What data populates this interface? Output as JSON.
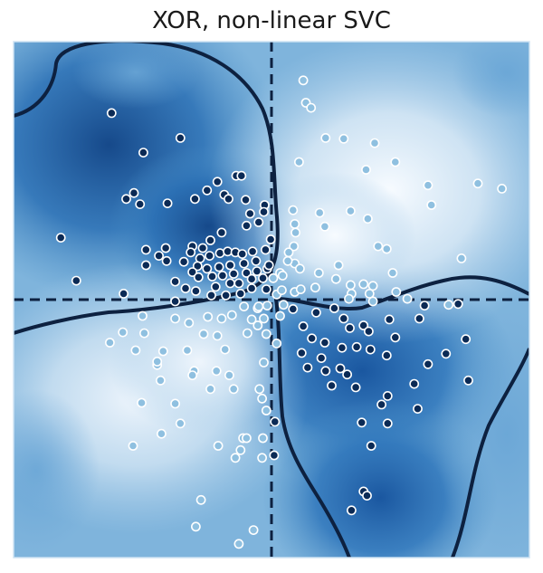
{
  "chart_data": {
    "type": "scatter",
    "title": "XOR, non-linear SVC",
    "xlabel": "",
    "ylabel": "",
    "xlim": [
      -3,
      3
    ],
    "ylim": [
      -3,
      3
    ],
    "grid": false,
    "ticks": false,
    "colormap": "Blues (decision function heatmap)",
    "decision_boundary": "solid dark navy contour",
    "axis_lines": {
      "x": 0,
      "y": 0,
      "style": "dashed"
    },
    "colors": {
      "point_class_positive": "#0b2a55",
      "point_class_negative": "#8fc0e0",
      "point_edge": "#ffffff",
      "boundary": "#0d2140",
      "axis_dash": "#0d2140",
      "dark_region": "#1f62a8",
      "light_region": "#e7f1fa"
    },
    "series": [
      {
        "points": [
          [
            -1.86,
            2.17
          ],
          [
            -1.49,
            1.71
          ],
          [
            -1.06,
            1.88
          ],
          [
            -1.6,
            1.24
          ],
          [
            -1.69,
            1.17
          ],
          [
            -1.53,
            1.11
          ],
          [
            -1.21,
            1.12
          ],
          [
            -0.89,
            1.17
          ],
          [
            -0.75,
            1.27
          ],
          [
            -0.63,
            1.37
          ],
          [
            -0.41,
            1.44
          ],
          [
            -0.35,
            1.44
          ],
          [
            -0.55,
            1.22
          ],
          [
            -0.5,
            1.17
          ],
          [
            -0.3,
            1.16
          ],
          [
            -0.25,
            1.0
          ],
          [
            -0.08,
            1.1
          ],
          [
            -0.09,
            1.02
          ],
          [
            -0.15,
            0.9
          ],
          [
            -0.29,
            0.86
          ],
          [
            -0.58,
            0.78
          ],
          [
            -0.71,
            0.69
          ],
          [
            -0.8,
            0.6
          ],
          [
            -0.92,
            0.62
          ],
          [
            -1.23,
            0.6
          ],
          [
            -1.46,
            0.58
          ],
          [
            -1.46,
            0.4
          ],
          [
            -1.31,
            0.51
          ],
          [
            -1.22,
            0.45
          ],
          [
            -1.02,
            0.44
          ],
          [
            -0.94,
            0.55
          ],
          [
            -0.83,
            0.48
          ],
          [
            -0.72,
            0.51
          ],
          [
            -0.6,
            0.54
          ],
          [
            -0.51,
            0.56
          ],
          [
            -0.42,
            0.55
          ],
          [
            -0.34,
            0.53
          ],
          [
            -0.22,
            0.56
          ],
          [
            -0.07,
            0.58
          ],
          [
            -0.01,
            0.7
          ],
          [
            -0.18,
            0.45
          ],
          [
            -0.32,
            0.42
          ],
          [
            -0.48,
            0.4
          ],
          [
            -0.61,
            0.38
          ],
          [
            -0.75,
            0.36
          ],
          [
            -0.86,
            0.39
          ],
          [
            -0.92,
            0.32
          ],
          [
            -0.85,
            0.26
          ],
          [
            -0.69,
            0.27
          ],
          [
            -0.57,
            0.28
          ],
          [
            -0.44,
            0.3
          ],
          [
            -0.29,
            0.31
          ],
          [
            -0.17,
            0.33
          ],
          [
            -0.05,
            0.36
          ],
          [
            -0.65,
            0.15
          ],
          [
            -0.48,
            0.19
          ],
          [
            -0.38,
            0.19
          ],
          [
            -0.23,
            0.24
          ],
          [
            -0.1,
            0.25
          ],
          [
            -0.03,
            0.4
          ],
          [
            -0.7,
            0.05
          ],
          [
            -0.53,
            0.05
          ],
          [
            -0.36,
            0.07
          ],
          [
            -0.23,
            0.13
          ],
          [
            -0.88,
            0.1
          ],
          [
            -1.0,
            0.13
          ],
          [
            -1.12,
            0.21
          ],
          [
            -1.12,
            -0.02
          ],
          [
            -1.72,
            0.07
          ],
          [
            -2.27,
            0.22
          ],
          [
            -2.45,
            0.72
          ],
          [
            -0.06,
            0.12
          ],
          [
            0.25,
            -0.11
          ],
          [
            0.37,
            -0.31
          ],
          [
            0.52,
            -0.15
          ],
          [
            0.73,
            -0.1
          ],
          [
            0.84,
            -0.22
          ],
          [
            0.91,
            -0.33
          ],
          [
            1.07,
            -0.3
          ],
          [
            0.99,
            -0.55
          ],
          [
            0.82,
            -0.56
          ],
          [
            0.62,
            -0.5
          ],
          [
            0.47,
            -0.45
          ],
          [
            0.58,
            -0.68
          ],
          [
            0.35,
            -0.62
          ],
          [
            0.42,
            -0.79
          ],
          [
            0.63,
            -0.83
          ],
          [
            0.8,
            -0.8
          ],
          [
            1.13,
            -0.37
          ],
          [
            1.37,
            -0.23
          ],
          [
            1.72,
            -0.22
          ],
          [
            2.17,
            -0.05
          ],
          [
            1.78,
            -0.07
          ],
          [
            1.44,
            -0.44
          ],
          [
            1.34,
            -0.65
          ],
          [
            1.15,
            -0.58
          ],
          [
            0.88,
            -0.87
          ],
          [
            0.7,
            -1.0
          ],
          [
            0.98,
            -1.02
          ],
          [
            1.35,
            -1.12
          ],
          [
            1.66,
            -0.98
          ],
          [
            1.82,
            -0.75
          ],
          [
            2.03,
            -0.63
          ],
          [
            2.26,
            -0.46
          ],
          [
            2.29,
            -0.94
          ],
          [
            1.7,
            -1.27
          ],
          [
            1.35,
            -1.44
          ],
          [
            1.28,
            -1.22
          ],
          [
            1.05,
            -1.43
          ],
          [
            0.04,
            -1.42
          ],
          [
            0.03,
            -1.81
          ],
          [
            1.16,
            -1.7
          ],
          [
            1.07,
            -2.23
          ],
          [
            1.11,
            -2.28
          ],
          [
            0.93,
            -2.45
          ]
        ],
        "class": "positive"
      },
      {
        "points": [
          [
            0.37,
            2.55
          ],
          [
            0.4,
            2.29
          ],
          [
            0.46,
            2.23
          ],
          [
            0.63,
            1.88
          ],
          [
            0.84,
            1.87
          ],
          [
            0.32,
            1.6
          ],
          [
            1.2,
            1.82
          ],
          [
            1.44,
            1.6
          ],
          [
            1.1,
            1.51
          ],
          [
            1.82,
            1.33
          ],
          [
            2.4,
            1.35
          ],
          [
            2.68,
            1.29
          ],
          [
            1.86,
            1.1
          ],
          [
            0.56,
            1.01
          ],
          [
            0.92,
            1.03
          ],
          [
            1.12,
            0.94
          ],
          [
            0.62,
            0.85
          ],
          [
            0.27,
            0.88
          ],
          [
            0.25,
            1.04
          ],
          [
            0.28,
            0.78
          ],
          [
            0.26,
            0.62
          ],
          [
            1.24,
            0.62
          ],
          [
            1.34,
            0.59
          ],
          [
            1.41,
            0.31
          ],
          [
            2.21,
            0.48
          ],
          [
            0.2,
            0.55
          ],
          [
            0.27,
            0.42
          ],
          [
            0.33,
            0.36
          ],
          [
            0.55,
            0.31
          ],
          [
            0.78,
            0.4
          ],
          [
            0.75,
            0.24
          ],
          [
            0.27,
            0.09
          ],
          [
            0.92,
            0.17
          ],
          [
            1.18,
            0.16
          ],
          [
            0.51,
            0.14
          ],
          [
            0.06,
            0.06
          ],
          [
            0.02,
            0.25
          ],
          [
            0.1,
            0.31
          ],
          [
            0.13,
            0.28
          ],
          [
            0.19,
            0.45
          ],
          [
            0.34,
            0.12
          ],
          [
            0.12,
            0.11
          ],
          [
            0.93,
            0.07
          ],
          [
            1.14,
            0.07
          ],
          [
            0.9,
            0.01
          ],
          [
            1.18,
            -0.02
          ],
          [
            1.58,
            0.01
          ],
          [
            1.45,
            0.09
          ],
          [
            1.07,
            0.18
          ],
          [
            2.06,
            -0.06
          ],
          [
            -0.16,
            -0.1
          ],
          [
            -0.32,
            -0.08
          ],
          [
            -0.15,
            -0.08
          ],
          [
            -0.05,
            -0.07
          ],
          [
            0.14,
            -0.06
          ],
          [
            0.1,
            -0.19
          ],
          [
            -0.09,
            -0.22
          ],
          [
            -0.23,
            -0.23
          ],
          [
            -0.46,
            -0.18
          ],
          [
            -0.58,
            -0.22
          ],
          [
            -0.74,
            -0.2
          ],
          [
            -0.96,
            -0.27
          ],
          [
            -1.12,
            -0.22
          ],
          [
            -1.5,
            -0.19
          ],
          [
            -1.73,
            -0.38
          ],
          [
            -1.48,
            -0.39
          ],
          [
            -1.88,
            -0.5
          ],
          [
            -1.58,
            -0.59
          ],
          [
            -1.26,
            -0.6
          ],
          [
            -0.79,
            -0.4
          ],
          [
            -0.63,
            -0.42
          ],
          [
            -0.54,
            -0.58
          ],
          [
            -0.28,
            -0.39
          ],
          [
            -0.16,
            -0.3
          ],
          [
            -0.06,
            -0.4
          ],
          [
            0.06,
            -0.51
          ],
          [
            -0.09,
            -0.73
          ],
          [
            -0.64,
            -0.83
          ],
          [
            -0.9,
            -0.83
          ],
          [
            -0.98,
            -0.59
          ],
          [
            -1.33,
            -0.76
          ],
          [
            -1.33,
            -0.72
          ],
          [
            -1.29,
            -0.94
          ],
          [
            -0.92,
            -0.88
          ],
          [
            -0.49,
            -0.88
          ],
          [
            -0.71,
            -1.04
          ],
          [
            -1.51,
            -1.2
          ],
          [
            -0.44,
            -1.04
          ],
          [
            -0.14,
            -1.04
          ],
          [
            -0.11,
            -1.15
          ],
          [
            -0.06,
            -1.29
          ],
          [
            -1.06,
            -1.44
          ],
          [
            -1.12,
            -1.21
          ],
          [
            -0.33,
            -1.61
          ],
          [
            -0.29,
            -1.61
          ],
          [
            -0.1,
            -1.61
          ],
          [
            -0.62,
            -1.7
          ],
          [
            -1.28,
            -1.56
          ],
          [
            -0.42,
            -1.84
          ],
          [
            -0.11,
            -1.84
          ],
          [
            -0.36,
            -1.75
          ],
          [
            -1.61,
            -1.7
          ],
          [
            -0.82,
            -2.33
          ],
          [
            -0.88,
            -2.64
          ],
          [
            -0.21,
            -2.68
          ],
          [
            -0.38,
            -2.84
          ]
        ],
        "class": "negative"
      }
    ]
  }
}
